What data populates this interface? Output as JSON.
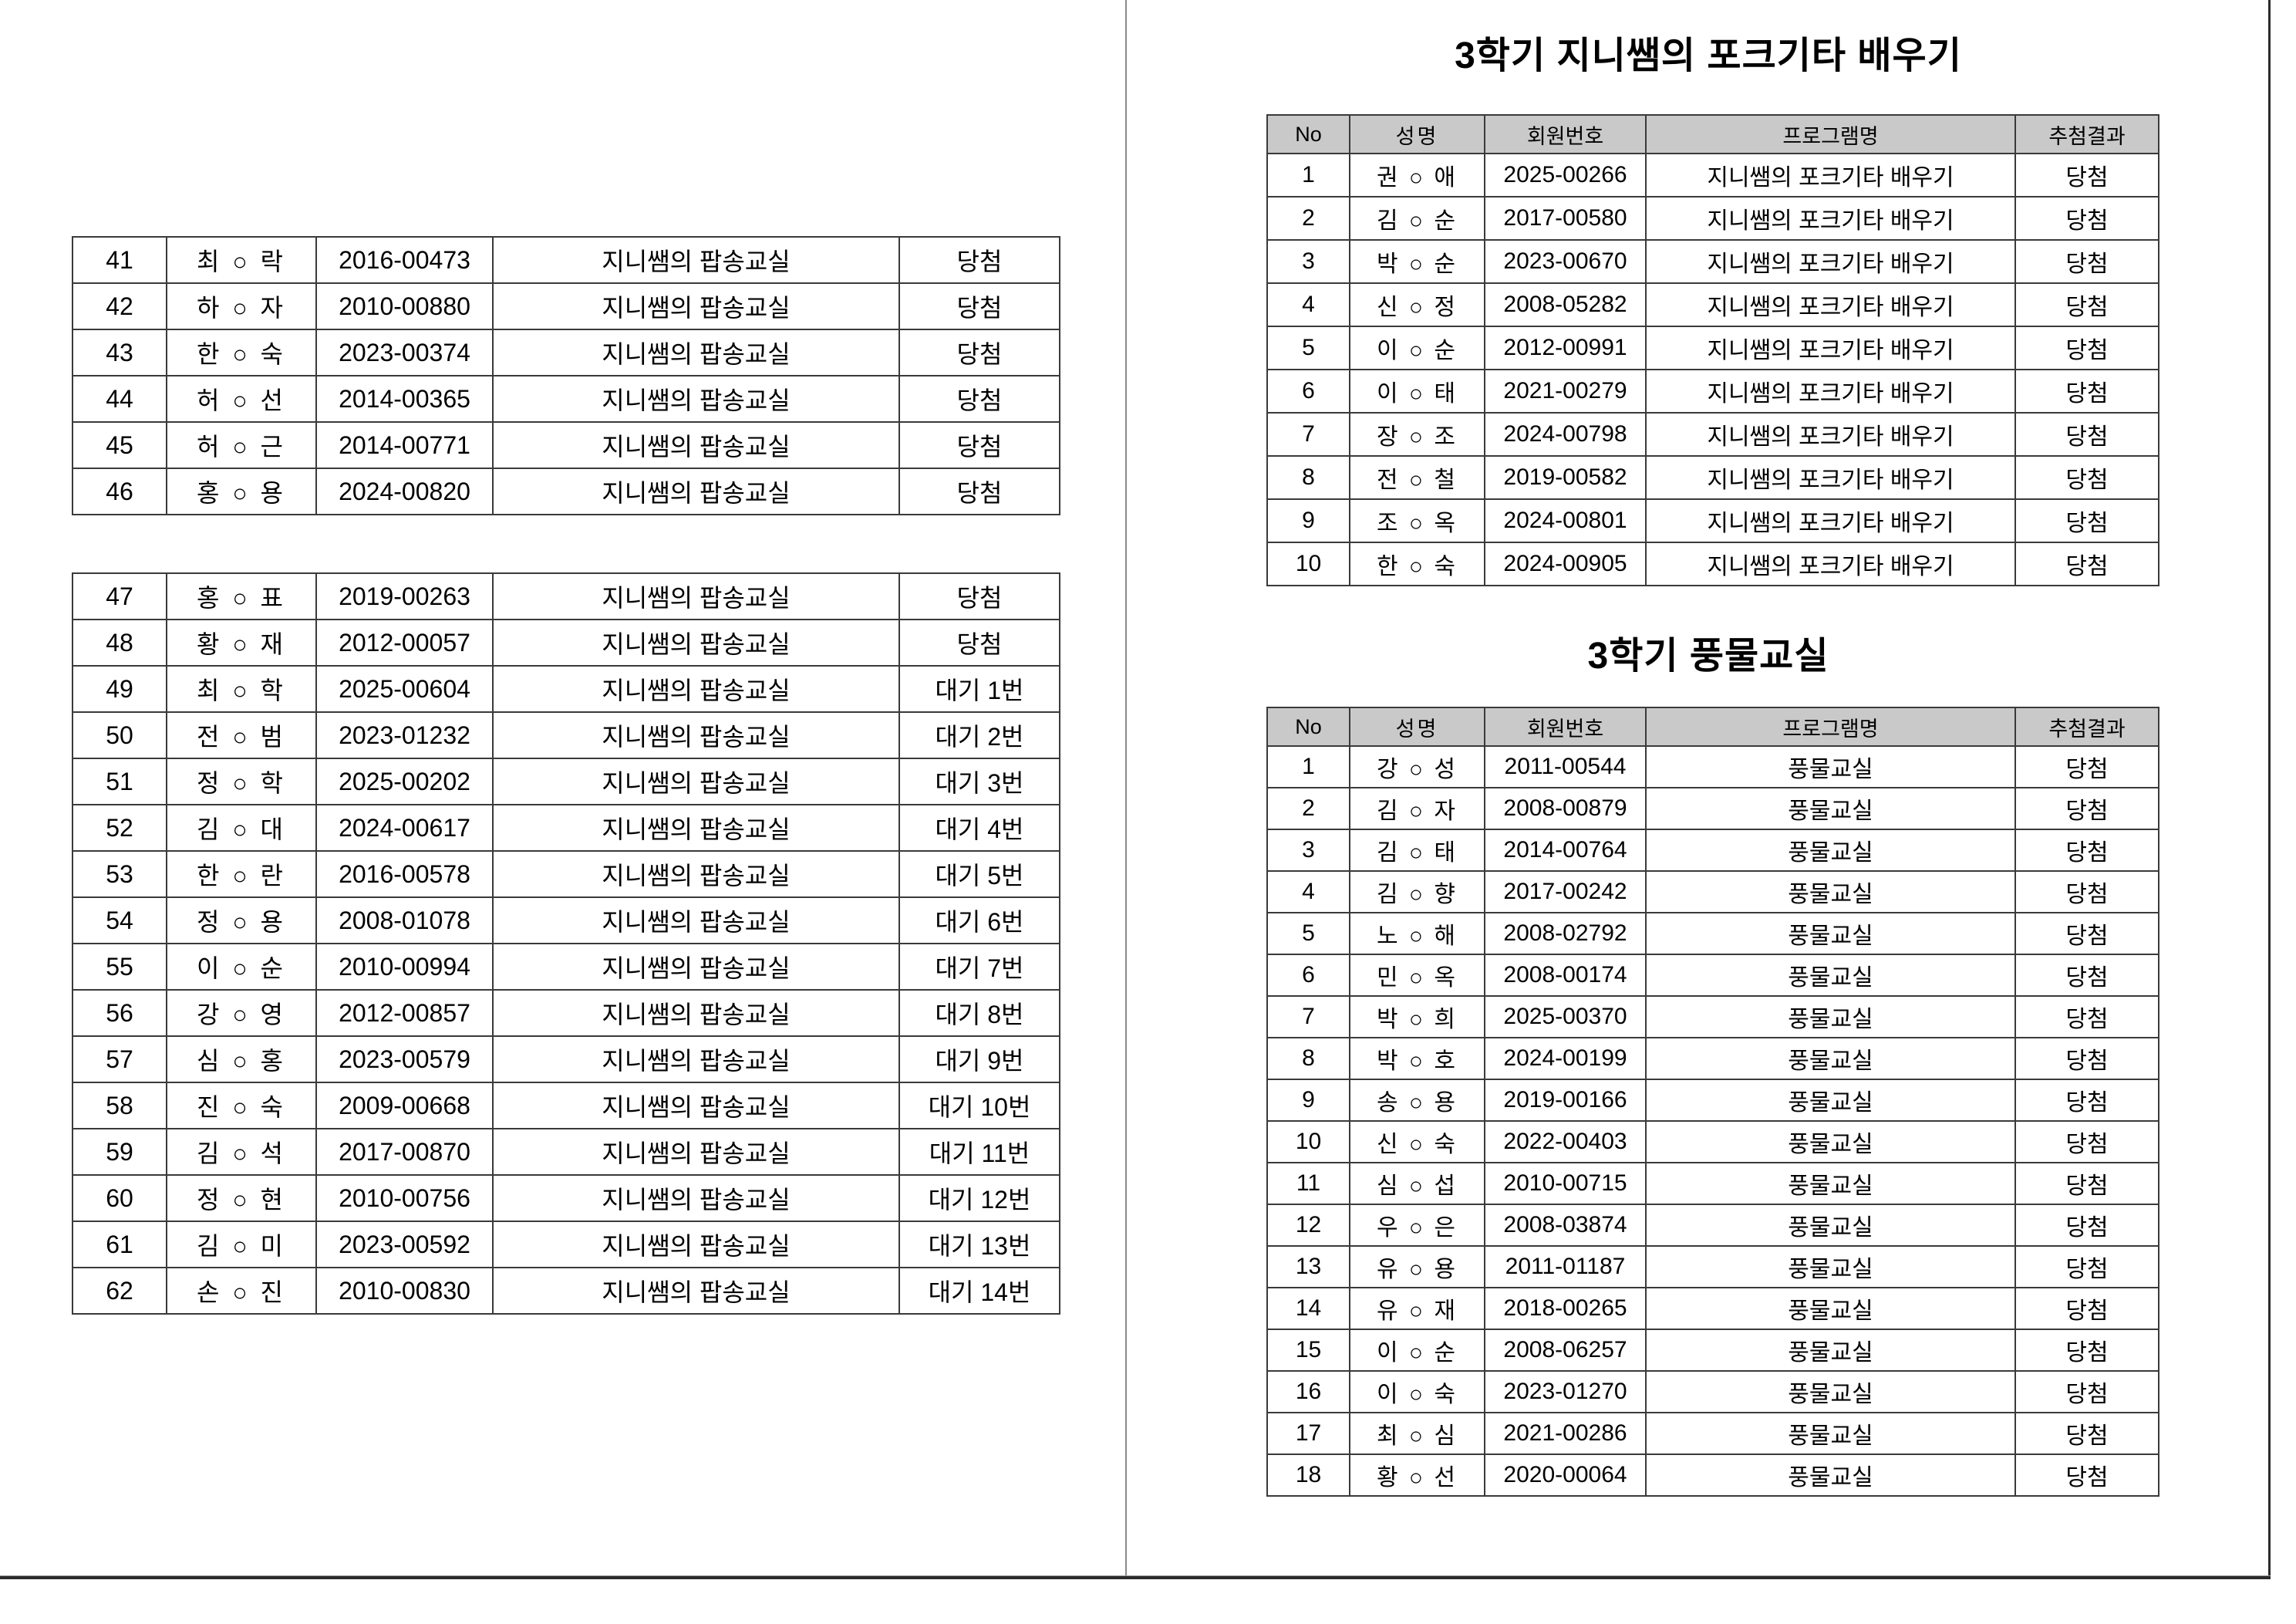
{
  "colors": {
    "header_bg": "#c9c9c9",
    "table_border": "#3a3a3a",
    "page_divider": "#8a8a8a",
    "frame_line": "#2b2b2b"
  },
  "left_page": {
    "table1": {
      "rows": [
        {
          "no": "41",
          "name": "최 ○ 락",
          "member_id": "2016-00473",
          "program": "지니쌤의 팝송교실",
          "result": "당첨"
        },
        {
          "no": "42",
          "name": "하 ○ 자",
          "member_id": "2010-00880",
          "program": "지니쌤의 팝송교실",
          "result": "당첨"
        },
        {
          "no": "43",
          "name": "한 ○ 숙",
          "member_id": "2023-00374",
          "program": "지니쌤의 팝송교실",
          "result": "당첨"
        },
        {
          "no": "44",
          "name": "허 ○ 선",
          "member_id": "2014-00365",
          "program": "지니쌤의 팝송교실",
          "result": "당첨"
        },
        {
          "no": "45",
          "name": "허 ○ 근",
          "member_id": "2014-00771",
          "program": "지니쌤의 팝송교실",
          "result": "당첨"
        },
        {
          "no": "46",
          "name": "홍 ○ 용",
          "member_id": "2024-00820",
          "program": "지니쌤의 팝송교실",
          "result": "당첨"
        }
      ]
    },
    "table2": {
      "rows": [
        {
          "no": "47",
          "name": "홍 ○ 표",
          "member_id": "2019-00263",
          "program": "지니쌤의 팝송교실",
          "result": "당첨"
        },
        {
          "no": "48",
          "name": "황 ○ 재",
          "member_id": "2012-00057",
          "program": "지니쌤의 팝송교실",
          "result": "당첨"
        },
        {
          "no": "49",
          "name": "최 ○ 학",
          "member_id": "2025-00604",
          "program": "지니쌤의 팝송교실",
          "result": "대기 1번"
        },
        {
          "no": "50",
          "name": "전 ○ 범",
          "member_id": "2023-01232",
          "program": "지니쌤의 팝송교실",
          "result": "대기 2번"
        },
        {
          "no": "51",
          "name": "정 ○ 학",
          "member_id": "2025-00202",
          "program": "지니쌤의 팝송교실",
          "result": "대기 3번"
        },
        {
          "no": "52",
          "name": "김 ○ 대",
          "member_id": "2024-00617",
          "program": "지니쌤의 팝송교실",
          "result": "대기 4번"
        },
        {
          "no": "53",
          "name": "한 ○ 란",
          "member_id": "2016-00578",
          "program": "지니쌤의 팝송교실",
          "result": "대기 5번"
        },
        {
          "no": "54",
          "name": "정 ○ 용",
          "member_id": "2008-01078",
          "program": "지니쌤의 팝송교실",
          "result": "대기 6번"
        },
        {
          "no": "55",
          "name": "이 ○ 순",
          "member_id": "2010-00994",
          "program": "지니쌤의 팝송교실",
          "result": "대기 7번"
        },
        {
          "no": "56",
          "name": "강 ○ 영",
          "member_id": "2012-00857",
          "program": "지니쌤의 팝송교실",
          "result": "대기 8번"
        },
        {
          "no": "57",
          "name": "심 ○ 홍",
          "member_id": "2023-00579",
          "program": "지니쌤의 팝송교실",
          "result": "대기 9번"
        },
        {
          "no": "58",
          "name": "진 ○ 숙",
          "member_id": "2009-00668",
          "program": "지니쌤의 팝송교실",
          "result": "대기 10번"
        },
        {
          "no": "59",
          "name": "김 ○ 석",
          "member_id": "2017-00870",
          "program": "지니쌤의 팝송교실",
          "result": "대기 11번"
        },
        {
          "no": "60",
          "name": "정 ○ 현",
          "member_id": "2010-00756",
          "program": "지니쌤의 팝송교실",
          "result": "대기 12번"
        },
        {
          "no": "61",
          "name": "김 ○ 미",
          "member_id": "2023-00592",
          "program": "지니쌤의 팝송교실",
          "result": "대기 13번"
        },
        {
          "no": "62",
          "name": "손 ○ 진",
          "member_id": "2010-00830",
          "program": "지니쌤의 팝송교실",
          "result": "대기 14번"
        }
      ]
    }
  },
  "right_page": {
    "headers": [
      "No",
      "성명",
      "회원번호",
      "프로그램명",
      "추첨결과"
    ],
    "guitar": {
      "title": "3학기 지니쌤의 포크기타 배우기",
      "rows": [
        {
          "no": "1",
          "name": "권 ○ 애",
          "member_id": "2025-00266",
          "program": "지니쌤의 포크기타 배우기",
          "result": "당첨"
        },
        {
          "no": "2",
          "name": "김 ○ 순",
          "member_id": "2017-00580",
          "program": "지니쌤의 포크기타 배우기",
          "result": "당첨"
        },
        {
          "no": "3",
          "name": "박 ○ 순",
          "member_id": "2023-00670",
          "program": "지니쌤의 포크기타 배우기",
          "result": "당첨"
        },
        {
          "no": "4",
          "name": "신 ○ 정",
          "member_id": "2008-05282",
          "program": "지니쌤의 포크기타 배우기",
          "result": "당첨"
        },
        {
          "no": "5",
          "name": "이 ○ 순",
          "member_id": "2012-00991",
          "program": "지니쌤의 포크기타 배우기",
          "result": "당첨"
        },
        {
          "no": "6",
          "name": "이 ○ 태",
          "member_id": "2021-00279",
          "program": "지니쌤의 포크기타 배우기",
          "result": "당첨"
        },
        {
          "no": "7",
          "name": "장 ○ 조",
          "member_id": "2024-00798",
          "program": "지니쌤의 포크기타 배우기",
          "result": "당첨"
        },
        {
          "no": "8",
          "name": "전 ○ 철",
          "member_id": "2019-00582",
          "program": "지니쌤의 포크기타 배우기",
          "result": "당첨"
        },
        {
          "no": "9",
          "name": "조 ○ 옥",
          "member_id": "2024-00801",
          "program": "지니쌤의 포크기타 배우기",
          "result": "당첨"
        },
        {
          "no": "10",
          "name": "한 ○ 숙",
          "member_id": "2024-00905",
          "program": "지니쌤의 포크기타 배우기",
          "result": "당첨"
        }
      ]
    },
    "pungmul": {
      "title": "3학기 풍물교실",
      "rows": [
        {
          "no": "1",
          "name": "강 ○ 성",
          "member_id": "2011-00544",
          "program": "풍물교실",
          "result": "당첨"
        },
        {
          "no": "2",
          "name": "김 ○ 자",
          "member_id": "2008-00879",
          "program": "풍물교실",
          "result": "당첨"
        },
        {
          "no": "3",
          "name": "김 ○ 태",
          "member_id": "2014-00764",
          "program": "풍물교실",
          "result": "당첨"
        },
        {
          "no": "4",
          "name": "김 ○ 향",
          "member_id": "2017-00242",
          "program": "풍물교실",
          "result": "당첨"
        },
        {
          "no": "5",
          "name": "노 ○ 해",
          "member_id": "2008-02792",
          "program": "풍물교실",
          "result": "당첨"
        },
        {
          "no": "6",
          "name": "민 ○ 옥",
          "member_id": "2008-00174",
          "program": "풍물교실",
          "result": "당첨"
        },
        {
          "no": "7",
          "name": "박 ○ 희",
          "member_id": "2025-00370",
          "program": "풍물교실",
          "result": "당첨"
        },
        {
          "no": "8",
          "name": "박 ○ 호",
          "member_id": "2024-00199",
          "program": "풍물교실",
          "result": "당첨"
        },
        {
          "no": "9",
          "name": "송 ○ 용",
          "member_id": "2019-00166",
          "program": "풍물교실",
          "result": "당첨"
        },
        {
          "no": "10",
          "name": "신 ○ 숙",
          "member_id": "2022-00403",
          "program": "풍물교실",
          "result": "당첨"
        },
        {
          "no": "11",
          "name": "심 ○ 섭",
          "member_id": "2010-00715",
          "program": "풍물교실",
          "result": "당첨"
        },
        {
          "no": "12",
          "name": "우 ○ 은",
          "member_id": "2008-03874",
          "program": "풍물교실",
          "result": "당첨"
        },
        {
          "no": "13",
          "name": "유 ○ 용",
          "member_id": "2011-01187",
          "program": "풍물교실",
          "result": "당첨"
        },
        {
          "no": "14",
          "name": "유 ○ 재",
          "member_id": "2018-00265",
          "program": "풍물교실",
          "result": "당첨"
        },
        {
          "no": "15",
          "name": "이 ○ 순",
          "member_id": "2008-06257",
          "program": "풍물교실",
          "result": "당첨"
        },
        {
          "no": "16",
          "name": "이 ○ 숙",
          "member_id": "2023-01270",
          "program": "풍물교실",
          "result": "당첨"
        },
        {
          "no": "17",
          "name": "최 ○ 심",
          "member_id": "2021-00286",
          "program": "풍물교실",
          "result": "당첨"
        },
        {
          "no": "18",
          "name": "황 ○ 선",
          "member_id": "2020-00064",
          "program": "풍물교실",
          "result": "당첨"
        }
      ]
    }
  }
}
